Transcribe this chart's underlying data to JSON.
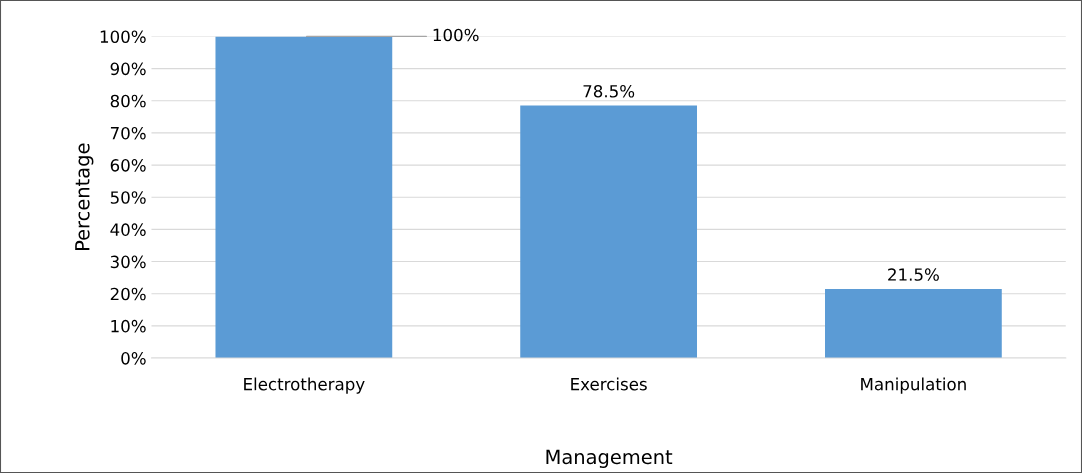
{
  "chart_data": {
    "type": "bar",
    "xlabel": "Management",
    "ylabel": "Percentage",
    "categories": [
      "Electrotherapy",
      "Exercises",
      "Manipulation"
    ],
    "values": [
      100,
      78.5,
      21.5
    ],
    "color": "#5b9bd5",
    "value_labels": [
      "100%",
      "78.5%",
      "21.5%"
    ],
    "ylim": [
      0,
      100
    ],
    "yticks": [
      {
        "value": 0,
        "label": "0%"
      },
      {
        "value": 10,
        "label": "10%"
      },
      {
        "value": 20,
        "label": "20%"
      },
      {
        "value": 30,
        "label": "30%"
      },
      {
        "value": 40,
        "label": "40%"
      },
      {
        "value": 50,
        "label": "50%"
      },
      {
        "value": 60,
        "label": "60%"
      },
      {
        "value": 70,
        "label": "70%"
      },
      {
        "value": 80,
        "label": "80%"
      },
      {
        "value": 90,
        "label": "90%"
      },
      {
        "value": 100,
        "label": "100%"
      }
    ],
    "grid": "y"
  }
}
